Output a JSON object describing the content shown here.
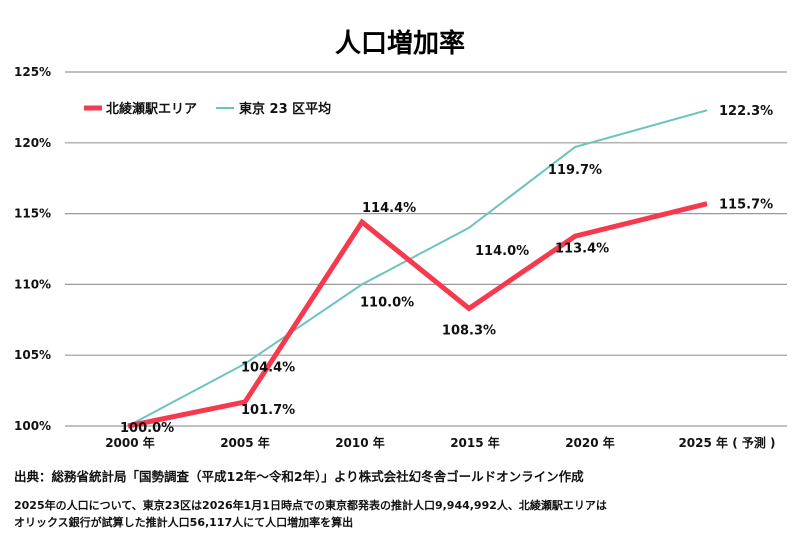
{
  "chart_data": {
    "type": "line",
    "title": "人口増加率",
    "categories": [
      "2000 年",
      "2005 年",
      "2010 年",
      "2015 年",
      "2020 年",
      "2025 年 ( 予測 )"
    ],
    "ylim": [
      100,
      125
    ],
    "yticks": [
      "100%",
      "105%",
      "110%",
      "115%",
      "120%",
      "125%"
    ],
    "grid": true,
    "legend_position": "top-left",
    "series": [
      {
        "name": "北綾瀬駅エリア",
        "color": "#f5394f",
        "values": [
          100.0,
          101.7,
          114.4,
          108.3,
          113.4,
          115.7
        ],
        "labels": [
          "100.0%",
          "101.7%",
          "114.4%",
          "108.3%",
          "113.4%",
          "115.7%"
        ]
      },
      {
        "name": "東京 23 区平均",
        "color": "#6cc5bd",
        "values": [
          100.0,
          104.4,
          110.0,
          114.0,
          119.7,
          122.3
        ],
        "labels": [
          "",
          "104.4%",
          "110.0%",
          "114.0%",
          "119.7%",
          "122.3%"
        ]
      }
    ]
  },
  "source": "出典：総務省統計局「国勢調査（平成12年〜令和2年）」より株式会社幻冬舎ゴールドオンライン作成",
  "note_line1": "2025年の人口について、東京23区は2026年1月1日時点での東京都発表の推計人口9,944,992人、北綾瀬駅エリアは",
  "note_line2": "オリックス銀行が試算した推計人口56,117人にて人口増加率を算出"
}
